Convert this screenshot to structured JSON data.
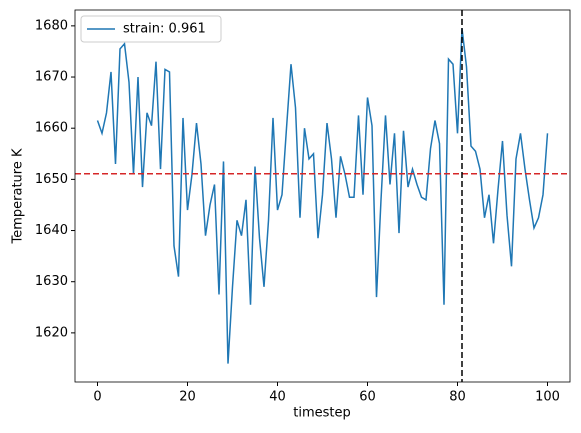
{
  "chart_data": {
    "type": "line",
    "x_label": "timestep",
    "y_label": "Temperature K",
    "x": [
      0,
      1,
      2,
      3,
      4,
      5,
      6,
      7,
      8,
      9,
      10,
      11,
      12,
      13,
      14,
      15,
      16,
      17,
      18,
      19,
      20,
      21,
      22,
      23,
      24,
      25,
      26,
      27,
      28,
      29,
      30,
      31,
      32,
      33,
      34,
      35,
      36,
      37,
      38,
      39,
      40,
      41,
      42,
      43,
      44,
      45,
      46,
      47,
      48,
      49,
      50,
      51,
      52,
      53,
      54,
      55,
      56,
      57,
      58,
      59,
      60,
      61,
      62,
      63,
      64,
      65,
      66,
      67,
      68,
      69,
      70,
      71,
      72,
      73,
      74,
      75,
      76,
      77,
      78,
      79,
      80,
      81,
      82,
      83,
      84,
      85,
      86,
      87,
      88,
      89,
      90,
      91,
      92,
      93,
      94,
      95,
      96,
      97,
      98,
      99,
      100
    ],
    "series": [
      {
        "name": "strain: 0.961",
        "color": "#1f77b4",
        "values": [
          1661.5,
          1659,
          1663,
          1671,
          1653,
          1675.5,
          1676.5,
          1669,
          1651,
          1670,
          1648.5,
          1663,
          1660.5,
          1673,
          1652,
          1671.5,
          1671,
          1637,
          1631,
          1662,
          1644,
          1651,
          1661,
          1653,
          1639,
          1645,
          1649,
          1627.5,
          1653.5,
          1614,
          1629,
          1642,
          1639,
          1646,
          1625.5,
          1652.5,
          1638.5,
          1629,
          1642,
          1662,
          1644,
          1647,
          1660,
          1672.5,
          1664,
          1642.5,
          1660,
          1654,
          1655,
          1638.5,
          1647,
          1661,
          1654,
          1642.5,
          1654.5,
          1651,
          1646.5,
          1646.5,
          1662.5,
          1647,
          1666,
          1660.5,
          1627,
          1646,
          1662.5,
          1649,
          1659,
          1639.5,
          1659.5,
          1648.5,
          1652,
          1649,
          1646.5,
          1646,
          1656,
          1661.5,
          1657,
          1625.5,
          1673.5,
          1672.5,
          1659,
          1679.5,
          1672,
          1656.5,
          1655.5,
          1652,
          1642.5,
          1647,
          1637.5,
          1648,
          1657.5,
          1643,
          1633,
          1654,
          1659,
          1652,
          1646,
          1640.5,
          1642.5,
          1647,
          1659
        ]
      }
    ],
    "hline": {
      "value": 1651.1,
      "color": "#d62728"
    },
    "vline": {
      "value": 81,
      "color": "#000000"
    },
    "xlim": [
      -5,
      105
    ],
    "xticks": [
      0,
      20,
      40,
      60,
      80,
      100
    ],
    "ylim": [
      1610.4,
      1683.1
    ],
    "yticks": [
      1620,
      1630,
      1640,
      1650,
      1660,
      1670,
      1680
    ],
    "legend": "upper left",
    "grid": false
  }
}
